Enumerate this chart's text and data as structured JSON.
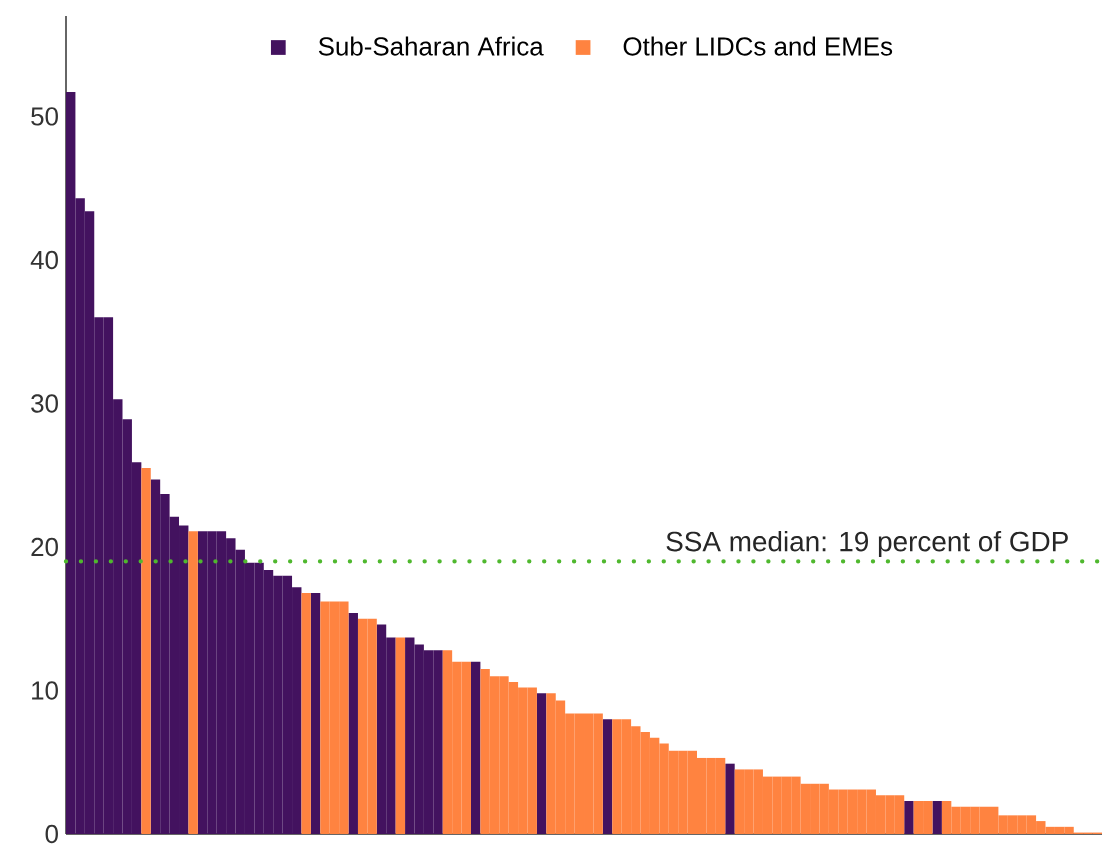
{
  "chart_data": {
    "type": "bar",
    "categories": [
      null,
      null,
      null,
      null,
      null,
      null,
      null,
      null,
      null,
      null,
      null,
      null,
      null,
      null,
      null,
      null,
      null,
      null,
      null,
      null,
      null,
      null,
      null,
      null,
      null,
      null,
      null,
      null,
      null,
      null,
      null,
      null,
      null,
      null,
      null,
      null,
      null,
      null,
      null,
      null,
      null,
      null,
      null,
      null,
      null,
      null,
      null,
      null,
      null,
      null,
      null,
      null,
      null,
      null,
      null,
      null,
      null,
      null,
      null,
      null,
      null,
      null,
      null,
      null,
      null,
      null,
      null,
      null,
      null,
      null,
      null,
      null,
      null,
      null,
      null,
      null,
      null,
      null,
      null,
      null,
      null,
      null,
      null,
      null,
      null,
      null,
      null,
      null,
      null,
      null,
      null,
      null,
      null,
      null,
      null,
      null,
      null,
      null,
      null,
      null,
      null,
      null,
      null,
      null,
      null,
      null,
      null,
      null,
      null,
      null
    ],
    "series": [
      {
        "name": "Sub-Saharan Africa",
        "color": "#43125f",
        "values": [
          51.7,
          44.3,
          43.4,
          36.0,
          36.0,
          30.3,
          28.9,
          25.9,
          null,
          24.7,
          23.7,
          22.1,
          21.5,
          null,
          21.1,
          21.1,
          21.1,
          20.6,
          19.8,
          18.9,
          18.9,
          18.4,
          18.0,
          18.0,
          17.2,
          null,
          16.8,
          null,
          null,
          null,
          15.4,
          null,
          null,
          14.6,
          13.7,
          null,
          13.7,
          13.2,
          12.8,
          12.8,
          null,
          null,
          null,
          12.0,
          null,
          null,
          null,
          null,
          null,
          null,
          9.8,
          null,
          null,
          null,
          null,
          null,
          null,
          8.0,
          null,
          null,
          null,
          null,
          null,
          null,
          null,
          null,
          null,
          null,
          null,
          null,
          4.9,
          null,
          null,
          null,
          null,
          null,
          null,
          null,
          null,
          null,
          null,
          null,
          null,
          null,
          null,
          null,
          null,
          null,
          null,
          2.3,
          null,
          null,
          2.3,
          null,
          null,
          null,
          null,
          null,
          null,
          null,
          null,
          null,
          null,
          null,
          null,
          null,
          null,
          null,
          null,
          null
        ]
      },
      {
        "name": "Other LIDCs and EMEs",
        "color": "#ff8340",
        "values": [
          null,
          null,
          null,
          null,
          null,
          null,
          null,
          null,
          25.5,
          null,
          null,
          null,
          null,
          21.1,
          null,
          null,
          null,
          null,
          null,
          null,
          null,
          null,
          null,
          null,
          null,
          16.8,
          null,
          16.2,
          16.2,
          16.2,
          null,
          15.0,
          15.0,
          null,
          null,
          13.7,
          null,
          null,
          null,
          null,
          12.8,
          12.0,
          12.0,
          null,
          11.5,
          11.0,
          11.0,
          10.6,
          10.2,
          10.2,
          null,
          9.8,
          9.3,
          8.4,
          8.4,
          8.4,
          8.4,
          null,
          8.0,
          8.0,
          7.5,
          7.1,
          6.7,
          6.3,
          5.8,
          5.8,
          5.8,
          5.3,
          5.3,
          5.3,
          null,
          4.5,
          4.5,
          4.5,
          4.0,
          4.0,
          4.0,
          4.0,
          3.5,
          3.5,
          3.5,
          3.1,
          3.1,
          3.1,
          3.1,
          3.1,
          2.7,
          2.7,
          2.7,
          null,
          2.3,
          2.3,
          null,
          2.3,
          1.9,
          1.9,
          1.9,
          1.9,
          1.9,
          1.3,
          1.3,
          1.3,
          1.3,
          0.9,
          0.5,
          0.5,
          0.5,
          0.1,
          0.1,
          0.1
        ]
      }
    ],
    "ylim": [
      0,
      57
    ],
    "yticks": [
      0,
      10,
      20,
      30,
      40,
      50
    ],
    "legend": "top",
    "grid": false,
    "ref_lines": [
      {
        "axis": "y",
        "value": 19,
        "label": "SSA median: 19 percent of GDP",
        "color": "#4fb82e",
        "line_style": "dotted"
      }
    ]
  }
}
